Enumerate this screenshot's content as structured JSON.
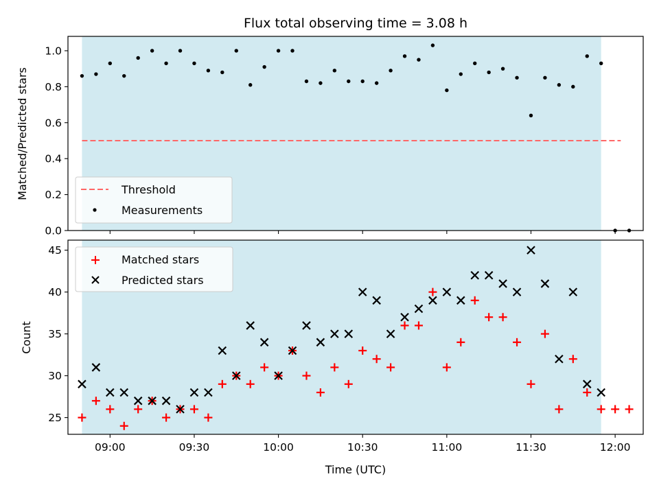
{
  "colors": {
    "coverage": "#add8e6",
    "threshold": "#ff6666",
    "measurement": "#000000",
    "matched": "#ff0000",
    "predicted": "#000000",
    "axes": "#000000",
    "legend_bg": "#ffffff"
  },
  "chart_data": [
    {
      "type": "scatter",
      "title": "Flux total observing time = 3.08 h",
      "xlabel": "",
      "ylabel": "Matched/Predicted stars",
      "xlim": [
        "08:45",
        "12:10"
      ],
      "ylim": [
        0,
        1.08
      ],
      "y_ticks": [
        0.0,
        0.2,
        0.4,
        0.6,
        0.8,
        1.0
      ],
      "y_tick_labels": [
        "0.0",
        "0.2",
        "0.4",
        "0.6",
        "0.8",
        "1.0"
      ],
      "coverage_span": [
        "08:50",
        "11:55"
      ],
      "threshold": {
        "name": "Threshold",
        "value": 0.5,
        "x_start": "08:50",
        "x_end": "12:02",
        "style": "dashed"
      },
      "measurements": {
        "name": "Measurements",
        "x": [
          "08:50",
          "08:55",
          "09:00",
          "09:05",
          "09:10",
          "09:15",
          "09:20",
          "09:25",
          "09:30",
          "09:35",
          "09:40",
          "09:45",
          "09:50",
          "09:55",
          "10:00",
          "10:05",
          "10:10",
          "10:15",
          "10:20",
          "10:25",
          "10:30",
          "10:35",
          "10:40",
          "10:45",
          "10:50",
          "10:55",
          "11:00",
          "11:05",
          "11:10",
          "11:15",
          "11:20",
          "11:25",
          "11:30",
          "11:35",
          "11:40",
          "11:45",
          "11:50",
          "11:55",
          "12:00",
          "12:05"
        ],
        "y": [
          0.86,
          0.87,
          0.93,
          0.86,
          0.96,
          1.0,
          0.93,
          1.0,
          0.93,
          0.89,
          0.88,
          1.0,
          0.81,
          0.91,
          1.0,
          1.0,
          0.83,
          0.82,
          0.89,
          0.83,
          0.83,
          0.82,
          0.89,
          0.97,
          0.95,
          1.03,
          0.78,
          0.87,
          0.93,
          0.88,
          0.9,
          0.85,
          0.64,
          0.85,
          0.81,
          0.8,
          0.97,
          0.93,
          0.0,
          0.0
        ]
      },
      "legend": {
        "placement": "lower-left",
        "entries": [
          "Threshold",
          "Measurements"
        ]
      }
    },
    {
      "type": "scatter",
      "title": "",
      "xlabel": "Time (UTC)",
      "ylabel": "Count",
      "xlim": [
        "08:45",
        "12:10"
      ],
      "ylim": [
        23,
        46.2
      ],
      "y_ticks": [
        25,
        30,
        35,
        40,
        45
      ],
      "y_tick_labels": [
        "25",
        "30",
        "35",
        "40",
        "45"
      ],
      "x_ticks": [
        "09:00",
        "09:30",
        "10:00",
        "10:30",
        "11:00",
        "11:30",
        "12:00"
      ],
      "coverage_span": [
        "08:50",
        "11:55"
      ],
      "series": [
        {
          "name": "Matched stars",
          "marker": "plus",
          "x": [
            "08:50",
            "08:55",
            "09:00",
            "09:05",
            "09:10",
            "09:15",
            "09:20",
            "09:25",
            "09:30",
            "09:35",
            "09:40",
            "09:45",
            "09:50",
            "09:55",
            "10:00",
            "10:05",
            "10:10",
            "10:15",
            "10:20",
            "10:25",
            "10:30",
            "10:35",
            "10:40",
            "10:45",
            "10:50",
            "10:55",
            "11:00",
            "11:05",
            "11:10",
            "11:15",
            "11:20",
            "11:25",
            "11:30",
            "11:35",
            "11:40",
            "11:45",
            "11:50",
            "11:55",
            "12:00",
            "12:05"
          ],
          "values": [
            25,
            27,
            26,
            24,
            26,
            27,
            25,
            26,
            26,
            25,
            29,
            30,
            29,
            31,
            30,
            33,
            30,
            28,
            31,
            29,
            33,
            32,
            31,
            36,
            36,
            40,
            31,
            34,
            39,
            37,
            37,
            34,
            29,
            35,
            26,
            32,
            28,
            26,
            26,
            26
          ]
        },
        {
          "name": "Predicted stars",
          "marker": "x",
          "x": [
            "08:50",
            "08:55",
            "09:00",
            "09:05",
            "09:10",
            "09:15",
            "09:20",
            "09:25",
            "09:30",
            "09:35",
            "09:40",
            "09:45",
            "09:50",
            "09:55",
            "10:00",
            "10:05",
            "10:10",
            "10:15",
            "10:20",
            "10:25",
            "10:30",
            "10:35",
            "10:40",
            "10:45",
            "10:50",
            "10:55",
            "11:00",
            "11:05",
            "11:10",
            "11:15",
            "11:20",
            "11:25",
            "11:30",
            "11:35",
            "11:40",
            "11:45",
            "11:50",
            "11:55"
          ],
          "values": [
            29,
            31,
            28,
            28,
            27,
            27,
            27,
            26,
            28,
            28,
            33,
            30,
            36,
            34,
            30,
            33,
            36,
            34,
            35,
            35,
            40,
            39,
            35,
            37,
            38,
            39,
            40,
            39,
            42,
            42,
            41,
            40,
            45,
            41,
            32,
            40,
            29,
            28
          ]
        }
      ],
      "legend": {
        "placement": "upper-left",
        "entries": [
          "Matched stars",
          "Predicted stars"
        ]
      }
    }
  ]
}
